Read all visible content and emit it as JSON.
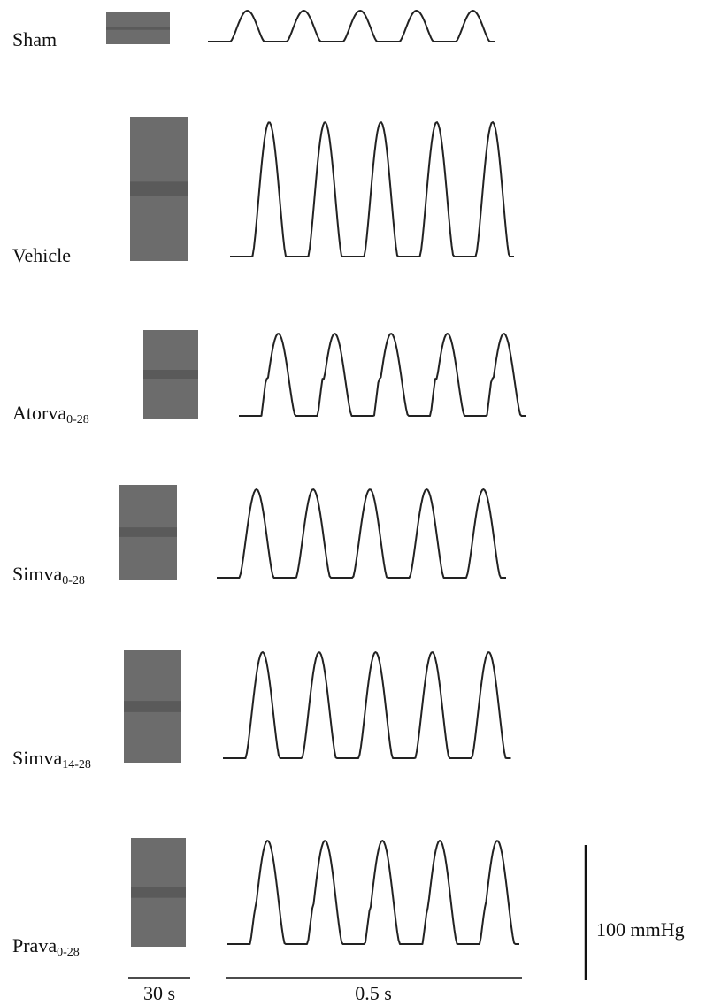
{
  "rows": [
    {
      "label": "Sham"
    },
    {
      "label": "Vehicle"
    },
    {
      "label": "Atorva",
      "subscript": "0-28"
    },
    {
      "label": "Simva",
      "subscript": "0-28"
    },
    {
      "label": "Simva",
      "subscript": "14-28"
    },
    {
      "label": "Prava",
      "subscript": "0-28"
    }
  ],
  "scale_bars": {
    "short_time": "30 s",
    "long_time": "0.5 s",
    "pressure": "100 mmHg"
  }
}
